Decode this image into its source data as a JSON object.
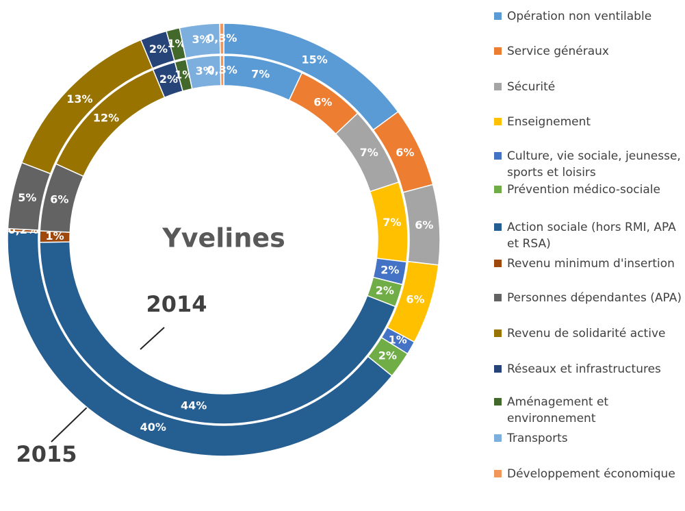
{
  "chart_data": {
    "type": "donut",
    "title": "Yvelines",
    "categories": [
      "Opération non ventilable",
      "Service généraux",
      "Sécurité",
      "Enseignement",
      "Culture, vie sociale, jeunesse, sports et loisirs",
      "Prévention médico-sociale",
      "Action sociale (hors RMI, APA et RSA)",
      "Revenu minimum d'insertion",
      "Personnes dépendantes (APA)",
      "Revenu de solidarité active",
      "Réseaux et infrastructures",
      "Aménagement et environnement",
      "Transports",
      "Développement économique"
    ],
    "colors": [
      "#5b9bd5",
      "#ed7d31",
      "#a5a5a5",
      "#ffc000",
      "#4472c4",
      "#70ad47",
      "#255e91",
      "#9e480e",
      "#636363",
      "#997300",
      "#264478",
      "#43682b",
      "#7cafdd",
      "#f1975a"
    ],
    "series": [
      {
        "name": "2015",
        "values": [
          15,
          6,
          6,
          6,
          1,
          2,
          40,
          0.2,
          5,
          13,
          2,
          1,
          3,
          0.3
        ],
        "value_labels": [
          "15%",
          "6%",
          "6%",
          "6%",
          "1%",
          "2%",
          "40%",
          "0,2%",
          "5%",
          "13%",
          "2%",
          "1%",
          "3%",
          "0,3%"
        ]
      },
      {
        "name": "2014",
        "values": [
          7,
          6,
          7,
          7,
          2,
          2,
          44,
          1,
          6,
          12,
          2,
          1,
          3,
          0.3
        ],
        "value_labels": [
          "7%",
          "6%",
          "7%",
          "7%",
          "2%",
          "2%",
          "44%",
          "1%",
          "6%",
          "12%",
          "2%",
          "1%",
          "3%",
          "0,3%"
        ]
      }
    ]
  }
}
